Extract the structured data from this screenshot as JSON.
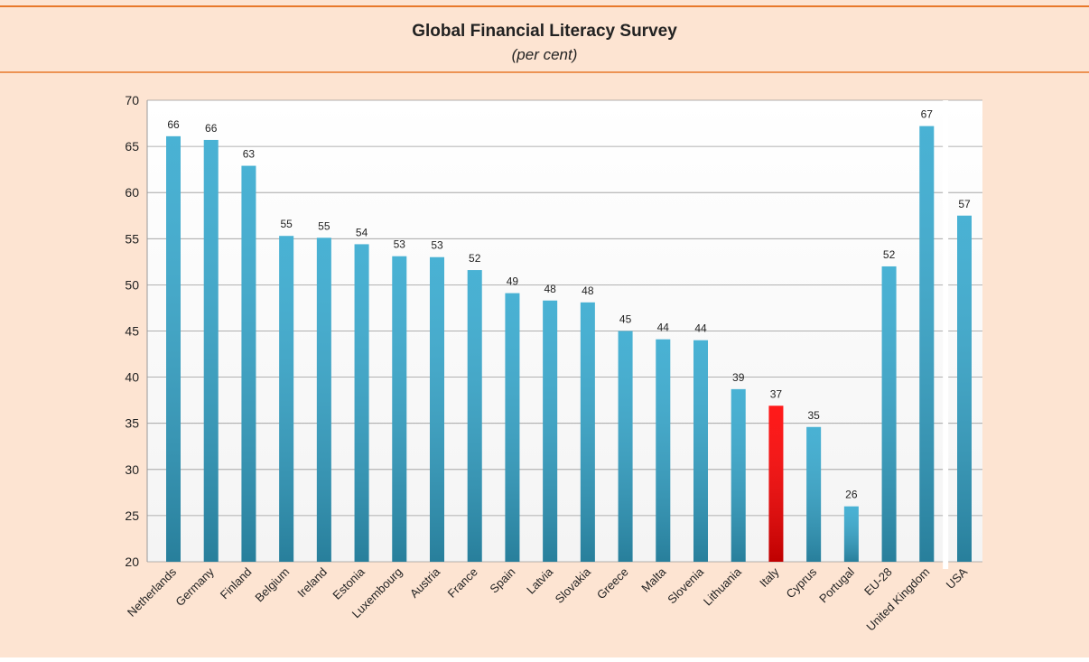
{
  "chart_data": {
    "type": "bar",
    "title": "Global Financial Literacy Survey",
    "subtitle": "(per cent)",
    "categories": [
      "Netherlands",
      "Germany",
      "Finland",
      "Belgium",
      "Ireland",
      "Estonia",
      "Luxembourg",
      "Austria",
      "France",
      "Spain",
      "Latvia",
      "Slovakia",
      "Greece",
      "Malta",
      "Slovenia",
      "Lithuania",
      "Italy",
      "Cyprus",
      "Portugal",
      "EU-28",
      "United Kingdom",
      "USA"
    ],
    "values": [
      66.1,
      65.7,
      62.9,
      55.3,
      55.1,
      54.4,
      53.1,
      53.0,
      51.6,
      49.1,
      48.3,
      48.1,
      45.0,
      44.1,
      44.0,
      38.7,
      36.9,
      34.6,
      26.0,
      52.0,
      67.2,
      57.5
    ],
    "value_labels": [
      "66",
      "66",
      "63",
      "55",
      "55",
      "54",
      "53",
      "53",
      "52",
      "49",
      "48",
      "48",
      "45",
      "44",
      "44",
      "39",
      "37",
      "35",
      "26",
      "52",
      "67",
      "57"
    ],
    "colors": [
      "#35a9cf",
      "#35a9cf",
      "#35a9cf",
      "#35a9cf",
      "#35a9cf",
      "#35a9cf",
      "#35a9cf",
      "#35a9cf",
      "#35a9cf",
      "#35a9cf",
      "#35a9cf",
      "#35a9cf",
      "#35a9cf",
      "#35a9cf",
      "#35a9cf",
      "#35a9cf",
      "#ff0000",
      "#35a9cf",
      "#35a9cf",
      "#35a9cf",
      "#35a9cf",
      "#35a9cf"
    ],
    "ylim": [
      20,
      70
    ],
    "yticks": [
      20,
      25,
      30,
      35,
      40,
      45,
      50,
      55,
      60,
      65,
      70
    ],
    "grid": true
  }
}
